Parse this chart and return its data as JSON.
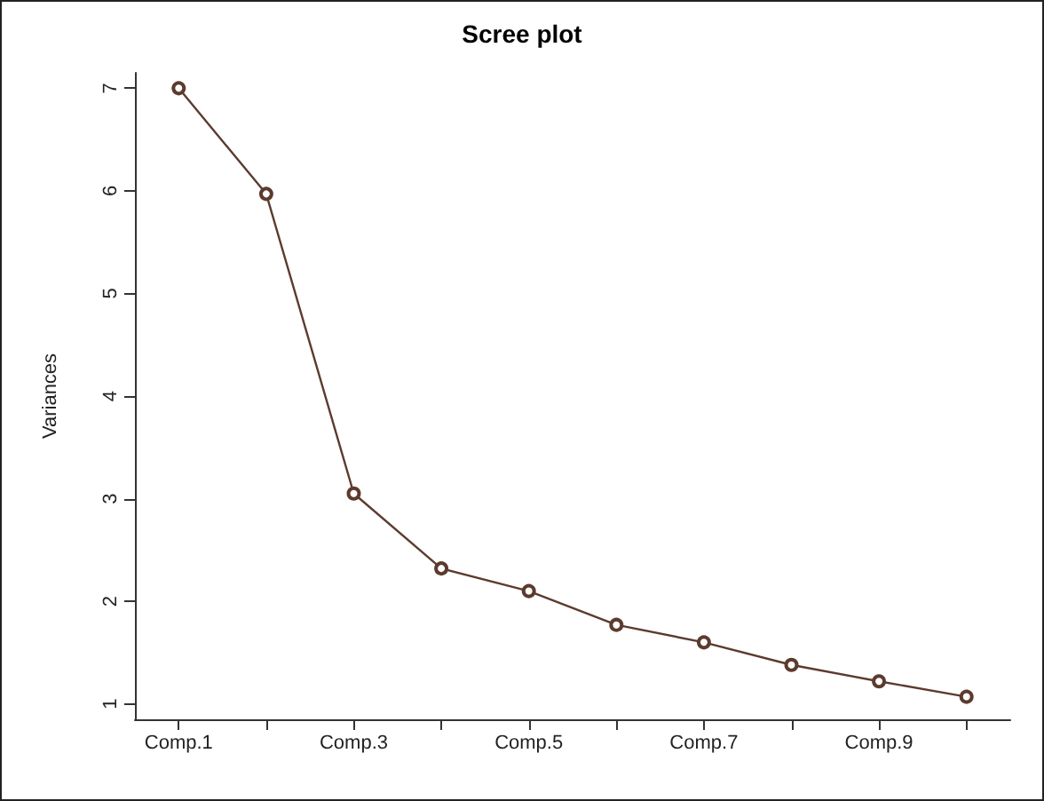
{
  "chart_data": {
    "type": "line",
    "title": "Scree plot",
    "ylabel": "Variances",
    "categories": [
      "Comp.1",
      null,
      "Comp.3",
      null,
      "Comp.5",
      null,
      "Comp.7",
      null,
      "Comp.9",
      null
    ],
    "series": [
      {
        "color": "#5c3b2e",
        "values": [
          7.0,
          5.97,
          3.05,
          2.32,
          2.1,
          1.77,
          1.6,
          1.38,
          1.22,
          1.07
        ]
      }
    ],
    "ylim": [
      0.85,
      7.15
    ],
    "yticks": [
      1,
      2,
      3,
      4,
      5,
      6,
      7
    ],
    "grid": false,
    "marker": "circle",
    "line_style": "solid"
  }
}
